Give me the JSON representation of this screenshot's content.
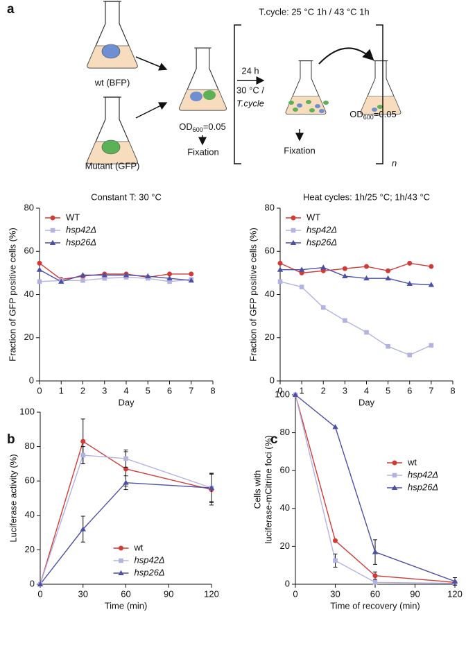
{
  "panel_labels": [
    "a",
    "b",
    "c"
  ],
  "diagram": {
    "cycle_title": "T.cycle: 25 °C 1h / 43 °C 1h",
    "flask_labels": [
      "wt (BFP)",
      "Mutant (GFP)"
    ],
    "od_labels": [
      {
        "main": "OD",
        "sub": "600",
        "rest": "=0.05"
      },
      {
        "main": "OD",
        "sub": "600",
        "rest": "=0.05"
      }
    ],
    "fixation_labels": [
      "Fixation",
      "Fixation"
    ],
    "step_labels": [
      "24 h",
      "30 °C /",
      "T.cycle"
    ],
    "repeat_label": "n"
  },
  "chart_data": [
    {
      "type": "line",
      "title": "Constant T: 30 °C",
      "xlabel": "Day",
      "ylabel": [
        "Fraction of GFP positive cells (%)"
      ],
      "x": [
        0,
        1,
        2,
        3,
        4,
        5,
        6,
        7
      ],
      "xlim": [
        0,
        8
      ],
      "xticks": [
        0,
        1,
        2,
        3,
        4,
        5,
        6,
        7,
        8
      ],
      "ylim": [
        0,
        80
      ],
      "yticks": [
        0,
        20,
        40,
        60,
        80
      ],
      "legend": "upper left",
      "series": [
        {
          "name": "WT",
          "color": "#d23a36",
          "marker": "circle",
          "italic": false,
          "values": [
            54.5,
            47,
            48.5,
            49.5,
            49.5,
            48,
            49.5,
            49.5
          ]
        },
        {
          "name": "hsp42Δ",
          "color": "#b3b3e2",
          "marker": "square",
          "italic": true,
          "values": [
            46,
            46.5,
            46.5,
            47.5,
            48,
            47.5,
            46,
            47
          ]
        },
        {
          "name": "hsp26Δ",
          "color": "#4b4fa6",
          "marker": "triangle",
          "italic": true,
          "values": [
            51.5,
            46,
            49,
            49,
            49,
            48.5,
            47.5,
            46.5
          ]
        }
      ]
    },
    {
      "type": "line",
      "title": "Heat cycles: 1h/25 °C; 1h/43 °C",
      "xlabel": "Day",
      "ylabel": [
        "Fraction of GFP positive cells (%)"
      ],
      "x": [
        0,
        1,
        2,
        3,
        4,
        5,
        6,
        7
      ],
      "xlim": [
        0,
        8
      ],
      "xticks": [
        0,
        1,
        2,
        3,
        4,
        5,
        6,
        7,
        8
      ],
      "ylim": [
        0,
        80
      ],
      "yticks": [
        0,
        20,
        40,
        60,
        80
      ],
      "legend": "upper left",
      "series": [
        {
          "name": "WT",
          "color": "#d23a36",
          "marker": "circle",
          "italic": false,
          "values": [
            54.5,
            50,
            51,
            52,
            53,
            51,
            54.5,
            53
          ]
        },
        {
          "name": "hsp42Δ",
          "color": "#b3b3e2",
          "marker": "square",
          "italic": true,
          "values": [
            46,
            43.5,
            34,
            28,
            22.5,
            16,
            12,
            16.5
          ]
        },
        {
          "name": "hsp26Δ",
          "color": "#4b4fa6",
          "marker": "triangle",
          "italic": true,
          "values": [
            51.5,
            51.5,
            52.5,
            48.5,
            47.5,
            47.5,
            45,
            44.5
          ]
        }
      ]
    },
    {
      "type": "line",
      "xlabel": "Time (min)",
      "ylabel": [
        "Luciferase activity (%)"
      ],
      "x": [
        0,
        30,
        60,
        120
      ],
      "xlim": [
        0,
        120
      ],
      "xticks": [
        0,
        30,
        60,
        90,
        120
      ],
      "ylim": [
        0,
        100
      ],
      "yticks": [
        0,
        20,
        40,
        60,
        80,
        100
      ],
      "legend": "lower center",
      "series": [
        {
          "name": "wt",
          "color": "#d23a36",
          "marker": "circle",
          "italic": false,
          "values": [
            0,
            83,
            67,
            55
          ],
          "errors": [
            0,
            13,
            10,
            9
          ]
        },
        {
          "name": "hsp42Δ",
          "color": "#b3b3e2",
          "marker": "square",
          "italic": true,
          "values": [
            0,
            75,
            73,
            56
          ],
          "errors": [
            0,
            5,
            5,
            8
          ]
        },
        {
          "name": "hsp26Δ",
          "color": "#4b4fa6",
          "marker": "triangle",
          "italic": true,
          "values": [
            0,
            32,
            59,
            56
          ],
          "errors": [
            0,
            7.5,
            4,
            8.5
          ]
        }
      ]
    },
    {
      "type": "line",
      "xlabel": "Time of recovery (min)",
      "ylabel": [
        "Cells with",
        "luciferase-mCitrine foci (%)"
      ],
      "x": [
        0,
        30,
        60,
        120
      ],
      "xlim": [
        0,
        120
      ],
      "xticks": [
        0,
        30,
        60,
        90,
        120
      ],
      "ylim": [
        0,
        100
      ],
      "yticks": [
        0,
        20,
        40,
        60,
        80,
        100
      ],
      "legend": "upper right",
      "series": [
        {
          "name": "wt",
          "color": "#d23a36",
          "marker": "circle",
          "italic": false,
          "values": [
            100,
            23,
            4.5,
            1
          ],
          "errors": [
            0,
            0,
            2,
            0
          ]
        },
        {
          "name": "hsp42Δ",
          "color": "#b3b3e2",
          "marker": "square",
          "italic": true,
          "values": [
            100,
            12.5,
            1,
            0.5
          ],
          "errors": [
            0,
            3.5,
            0,
            0
          ]
        },
        {
          "name": "hsp26Δ",
          "color": "#4b4fa6",
          "marker": "triangle",
          "italic": true,
          "values": [
            100,
            83,
            17,
            1.5
          ],
          "errors": [
            0,
            0,
            6.5,
            2
          ]
        }
      ]
    }
  ]
}
